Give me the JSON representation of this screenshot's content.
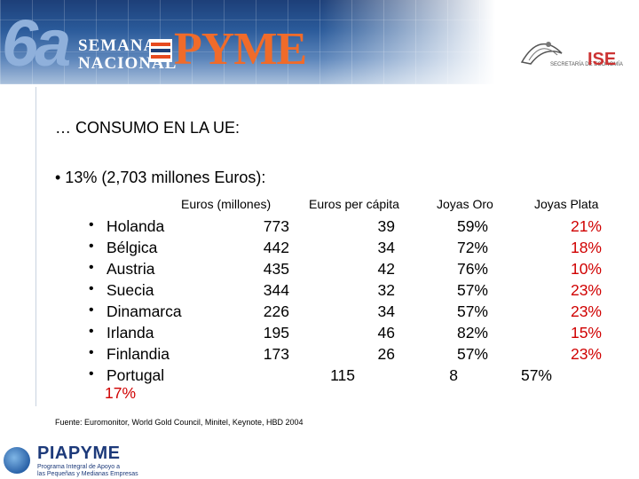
{
  "header": {
    "edition": "6a",
    "semana_line1": "SEMANA",
    "semana_line2": "NACIONAL",
    "pyme": "PYME",
    "secretaria": "SECRETARÍA DE ECONOMÍA",
    "ise": "ISE"
  },
  "slide": {
    "title": "… CONSUMO EN LA UE:",
    "bullet": "•  13% (2,703 millones Euros):",
    "columns": [
      "Euros (millones)",
      "Euros per cápita",
      "Joyas Oro",
      "Joyas Plata"
    ],
    "rows": [
      {
        "country": "Holanda",
        "euros": "773",
        "per_capita": "39",
        "oro": "59%",
        "plata": "21%"
      },
      {
        "country": "Bélgica",
        "euros": "442",
        "per_capita": "34",
        "oro": "72%",
        "plata": "18%"
      },
      {
        "country": "Austria",
        "euros": "435",
        "per_capita": "42",
        "oro": "76%",
        "plata": "10%"
      },
      {
        "country": "Suecia",
        "euros": "344",
        "per_capita": "32",
        "oro": "57%",
        "plata": "23%"
      },
      {
        "country": "Dinamarca",
        "euros": "226",
        "per_capita": "34",
        "oro": "57%",
        "plata": "23%"
      },
      {
        "country": "Irlanda",
        "euros": "195",
        "per_capita": "46",
        "oro": "82%",
        "plata": "15%"
      },
      {
        "country": "Finlandia",
        "euros": "173",
        "per_capita": "26",
        "oro": "57%",
        "plata": "23%"
      }
    ],
    "portugal": {
      "country": "Portugal",
      "per_capita": "115",
      "oro": "8",
      "plata": "57%",
      "wrap": "17%"
    },
    "bullet_char": "•",
    "source": "Fuente: Euromonitor, World Gold Council, Minitel, Keynote, HBD 2004"
  },
  "footer": {
    "logo": "PIAPYME",
    "sub_line1": "Programa Integral de Apoyo a",
    "sub_line2": "las Pequeñas y Medianas Empresas"
  }
}
